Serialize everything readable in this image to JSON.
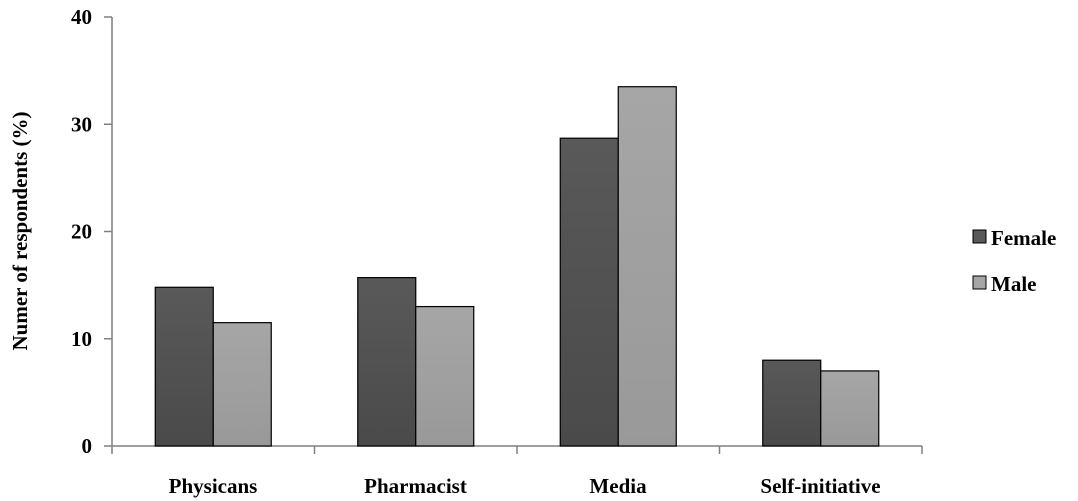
{
  "chart_data": {
    "type": "bar",
    "categories": [
      "Physicans",
      "Pharmacist",
      "Media",
      "Self-initiative"
    ],
    "series": [
      {
        "name": "Female",
        "values": [
          14.8,
          15.7,
          28.7,
          8.0
        ],
        "color": "#595959"
      },
      {
        "name": "Male",
        "values": [
          11.5,
          13.0,
          33.5,
          7.0
        ],
        "color": "#a6a6a6"
      }
    ],
    "title": "",
    "xlabel": "",
    "ylabel": "Numer of respondents (%)",
    "ylim": [
      0,
      40
    ],
    "yticks": [
      "0",
      "10",
      "20",
      "30",
      "40"
    ],
    "grid": false,
    "legend": "right"
  }
}
